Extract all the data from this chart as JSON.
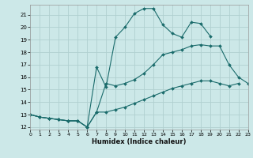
{
  "xlabel": "Humidex (Indice chaleur)",
  "bg_color": "#cce8e8",
  "grid_color": "#b0d0d0",
  "line_color": "#1a6b6b",
  "series1_x": [
    0,
    1,
    2,
    3,
    4,
    5,
    6,
    7,
    8,
    9,
    10,
    11,
    12,
    13,
    14,
    15,
    16,
    17,
    18,
    19,
    20,
    21,
    22,
    23
  ],
  "series1_y": [
    13.0,
    12.8,
    12.7,
    12.6,
    12.5,
    12.5,
    12.0,
    16.8,
    15.2,
    19.2,
    20.0,
    21.1,
    21.5,
    21.5,
    20.2,
    19.5,
    19.2,
    20.4,
    20.3,
    19.3,
    null,
    null,
    null,
    null
  ],
  "series2_x": [
    0,
    1,
    2,
    3,
    4,
    5,
    6,
    7,
    8,
    9,
    10,
    11,
    12,
    13,
    14,
    15,
    16,
    17,
    18,
    19,
    20,
    21,
    22,
    23
  ],
  "series2_y": [
    13.0,
    12.8,
    12.7,
    12.6,
    12.5,
    12.5,
    12.0,
    13.2,
    15.5,
    15.3,
    15.5,
    15.8,
    16.3,
    17.0,
    17.8,
    18.0,
    18.2,
    18.5,
    18.6,
    18.5,
    18.5,
    17.0,
    16.0,
    15.5
  ],
  "series3_x": [
    0,
    1,
    2,
    3,
    4,
    5,
    6,
    7,
    8,
    9,
    10,
    11,
    12,
    13,
    14,
    15,
    16,
    17,
    18,
    19,
    20,
    21,
    22,
    23
  ],
  "series3_y": [
    13.0,
    12.8,
    12.7,
    12.6,
    12.5,
    12.5,
    12.0,
    13.2,
    13.2,
    13.4,
    13.6,
    13.9,
    14.2,
    14.5,
    14.8,
    15.1,
    15.3,
    15.5,
    15.7,
    15.7,
    15.5,
    15.3,
    15.5,
    null
  ],
  "xlim": [
    0,
    23
  ],
  "ylim": [
    11.8,
    21.8
  ],
  "yticks": [
    12,
    13,
    14,
    15,
    16,
    17,
    18,
    19,
    20,
    21
  ],
  "xticks": [
    0,
    1,
    2,
    3,
    4,
    5,
    6,
    7,
    8,
    9,
    10,
    11,
    12,
    13,
    14,
    15,
    16,
    17,
    18,
    19,
    20,
    21,
    22,
    23
  ]
}
